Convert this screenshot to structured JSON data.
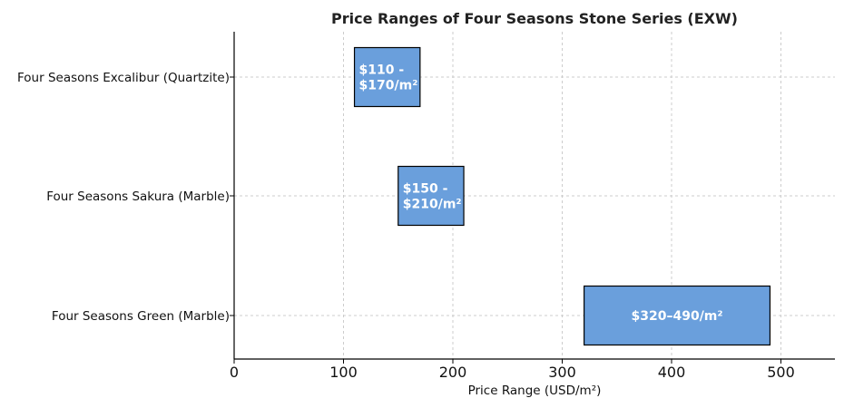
{
  "chart_data": {
    "type": "bar",
    "orientation": "horizontal",
    "title": "Price Ranges of Four Seasons Stone Series (EXW)",
    "xlabel": "Price Range (USD/m²)",
    "ylabel": "",
    "xlim": [
      0,
      550
    ],
    "xticks": [
      0,
      100,
      200,
      300,
      400,
      500
    ],
    "grid": true,
    "bar_color": "#6a9fdc",
    "bar_edge_color": "#000000",
    "categories": [
      "Four Seasons Excalibur (Quartzite)",
      "Four Seasons Sakura (Marble)",
      "Four Seasons Green (Marble)"
    ],
    "ranges": [
      {
        "category": "Four Seasons Excalibur (Quartzite)",
        "min": 110,
        "max": 170,
        "label_lines": [
          "$110 -",
          "$170/m²"
        ]
      },
      {
        "category": "Four Seasons Sakura (Marble)",
        "min": 150,
        "max": 210,
        "label_lines": [
          "$150 -",
          "$210/m²"
        ]
      },
      {
        "category": "Four Seasons Green (Marble)",
        "min": 320,
        "max": 490,
        "label_lines": [
          "$320–490/m²"
        ]
      }
    ]
  }
}
